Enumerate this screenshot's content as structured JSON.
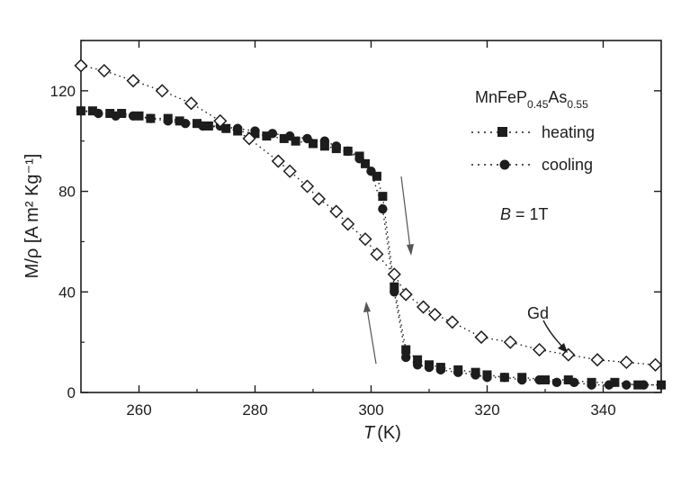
{
  "chart_data": {
    "type": "scatter",
    "xlabel_symbol": "T",
    "xlabel_unit": "(K)",
    "ylabel": "M/ρ [A m² Kg⁻¹]",
    "xlim": [
      250,
      350
    ],
    "ylim": [
      0,
      140
    ],
    "xticks": [
      260,
      280,
      300,
      320,
      340
    ],
    "yticks": [
      0,
      40,
      80,
      120
    ],
    "legend_title": "MnFeP0.45As0.55",
    "legend_title_parts": {
      "base": "MnFeP",
      "sub1": "0.45",
      "mid": "As",
      "sub2": "0.55"
    },
    "legend_position": "top-right",
    "annotation_field": "B = 1T",
    "annotation_field_parts": {
      "symbol": "B",
      "rest": " = 1T"
    },
    "annotation_gd": "Gd",
    "series": [
      {
        "name": "heating",
        "marker": "square-filled",
        "x": [
          250,
          252,
          255,
          257,
          260,
          262,
          265,
          267,
          270,
          272,
          275,
          277,
          280,
          282,
          285,
          287,
          290,
          292,
          294,
          296,
          298,
          299,
          301,
          302,
          304,
          306,
          308,
          310,
          312,
          315,
          318,
          320,
          323,
          326,
          330,
          334,
          338,
          342,
          346,
          350
        ],
        "y": [
          112,
          112,
          111,
          111,
          110,
          109,
          109,
          108,
          107,
          106,
          105,
          104,
          103,
          102,
          101,
          100,
          99,
          98,
          97,
          96,
          94,
          91,
          86,
          78,
          42,
          17,
          13,
          11,
          10,
          9,
          8,
          7,
          6,
          6,
          5,
          5,
          4,
          4,
          3,
          3
        ]
      },
      {
        "name": "cooling",
        "marker": "circle-filled",
        "x": [
          250,
          253,
          256,
          259,
          262,
          265,
          268,
          271,
          274,
          277,
          280,
          283,
          286,
          289,
          292,
          294,
          296,
          298,
          300,
          302,
          304,
          306,
          308,
          310,
          312,
          315,
          318,
          320,
          323,
          326,
          329,
          332,
          335,
          338,
          341,
          344,
          347,
          350
        ],
        "y": [
          112,
          111,
          110,
          110,
          109,
          108,
          107,
          106,
          106,
          105,
          104,
          103,
          102,
          101,
          100,
          98,
          96,
          93,
          88,
          73,
          40,
          14,
          11,
          10,
          9,
          8,
          7,
          6,
          6,
          5,
          5,
          4,
          4,
          3,
          3,
          3,
          3,
          3
        ]
      },
      {
        "name": "Gd",
        "marker": "diamond-open",
        "x": [
          250,
          254,
          259,
          264,
          269,
          274,
          279,
          284,
          286,
          289,
          291,
          294,
          296,
          299,
          301,
          304,
          306,
          309,
          311,
          314,
          319,
          324,
          329,
          334,
          339,
          344,
          349
        ],
        "y": [
          130,
          128,
          124,
          120,
          115,
          108,
          101,
          92,
          88,
          82,
          77,
          72,
          67,
          61,
          55,
          47,
          39,
          34,
          31,
          28,
          22,
          20,
          17,
          15,
          13,
          12,
          11
        ]
      }
    ]
  }
}
